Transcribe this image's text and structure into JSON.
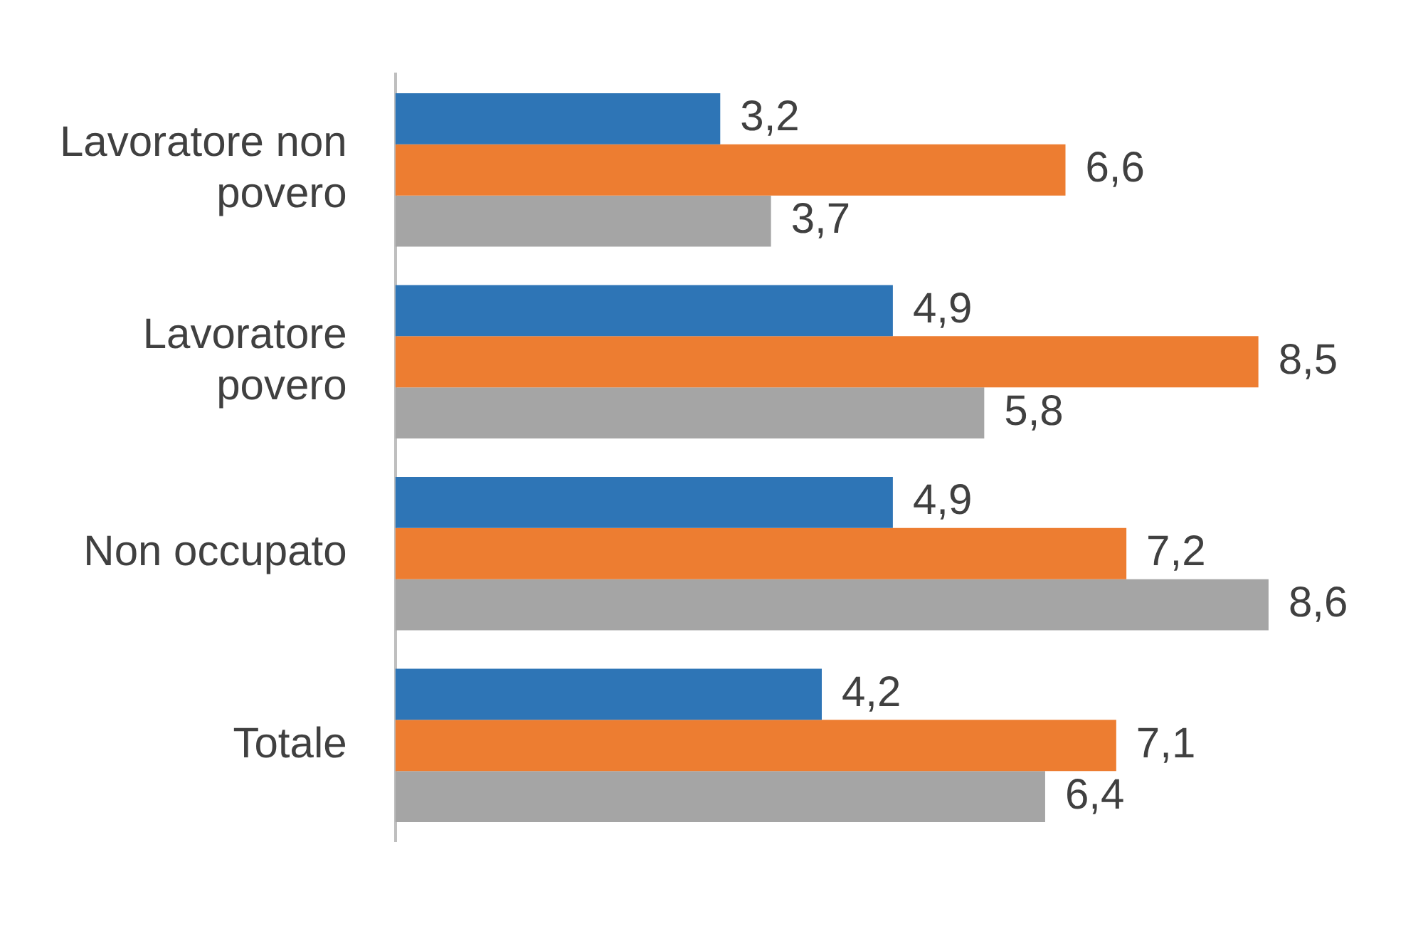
{
  "chart_data": {
    "type": "bar",
    "orientation": "horizontal",
    "categories": [
      "Lavoratore non povero",
      "Lavoratore povero",
      "Non occupato",
      "Totale"
    ],
    "series": [
      {
        "color": "#2e75b6",
        "values": [
          3.2,
          4.9,
          4.9,
          4.2
        ],
        "value_labels": [
          "3,2",
          "4,9",
          "4,9",
          "4,2"
        ]
      },
      {
        "color": "#ed7d31",
        "values": [
          6.6,
          8.5,
          7.2,
          7.1
        ],
        "value_labels": [
          "6,6",
          "8,5",
          "7,2",
          "7,1"
        ]
      },
      {
        "color": "#a5a5a5",
        "values": [
          3.7,
          5.8,
          8.6,
          6.4
        ],
        "value_labels": [
          "3,7",
          "5,8",
          "8,6",
          "6,4"
        ]
      }
    ],
    "grid": false,
    "legend": false
  }
}
